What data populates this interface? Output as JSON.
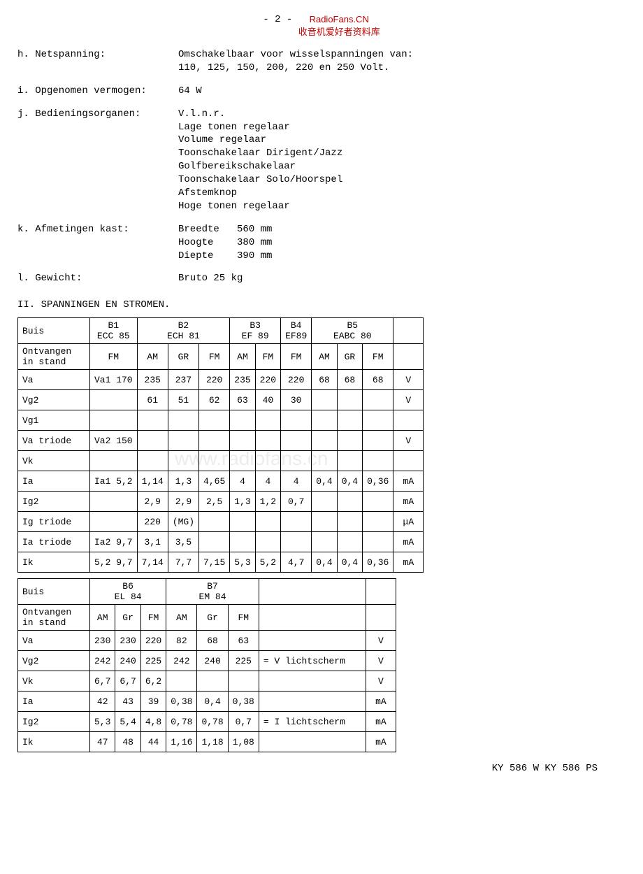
{
  "header": {
    "page_num": "- 2 -",
    "watermark_top": "RadioFans.CN",
    "watermark_sub": "收音机爱好者资料库"
  },
  "specs": [
    {
      "label": "h. Netspanning:",
      "value": "Omschakelbaar voor wisselspanningen van:\n110, 125, 150, 200, 220 en 250 Volt."
    },
    {
      "label": "i. Opgenomen vermogen:",
      "value": "64 W"
    },
    {
      "label": "j. Bedieningsorganen:",
      "value": "V.l.n.r.\nLage tonen regelaar\nVolume regelaar\nToonschakelaar Dirigent/Jazz\nGolfbereikschakelaar\nToonschakelaar Solo/Hoorspel\nAfstemknop\nHoge tonen regelaar"
    },
    {
      "label": "k. Afmetingen kast:",
      "value": "Breedte   560 mm\nHoogte    380 mm\nDiepte    390 mm"
    },
    {
      "label": "l. Gewicht:",
      "value": "Bruto 25 kg"
    }
  ],
  "section2_title": "II. SPANNINGEN EN STROMEN.",
  "table1": {
    "buis_label": "Buis",
    "tubes": [
      {
        "id": "B1",
        "type": "ECC 85",
        "span": 1
      },
      {
        "id": "B2",
        "type": "ECH  81",
        "span": 3
      },
      {
        "id": "B3",
        "type": "EF 89",
        "span": 2
      },
      {
        "id": "B4",
        "type": "EF89",
        "span": 1
      },
      {
        "id": "B5",
        "type": "EABC  80",
        "span": 3
      }
    ],
    "ontvangen_label": "Ontvangen\nin stand",
    "bands": [
      "FM",
      "AM",
      "GR",
      "FM",
      "AM",
      "FM",
      "FM",
      "AM",
      "GR",
      "FM"
    ],
    "rows": [
      {
        "lbl": "Va",
        "c": [
          "Va1 170",
          "235",
          "237",
          "220",
          "235",
          "220",
          "220",
          "68",
          "68",
          "68"
        ],
        "u": "V"
      },
      {
        "lbl": "Vg2",
        "c": [
          "",
          "61",
          "51",
          "62",
          "63",
          "40",
          "30",
          "",
          "",
          ""
        ],
        "u": "V"
      },
      {
        "lbl": "Vg1",
        "c": [
          "",
          "",
          "",
          "",
          "",
          "",
          "",
          "",
          "",
          ""
        ],
        "u": ""
      },
      {
        "lbl": "Va triode",
        "c": [
          "Va2 150",
          "",
          "",
          "",
          "",
          "",
          "",
          "",
          "",
          ""
        ],
        "u": "V"
      },
      {
        "lbl": "Vk",
        "c": [
          "",
          "",
          "",
          "",
          "",
          "",
          "",
          "",
          "",
          ""
        ],
        "u": ""
      },
      {
        "lbl": "Ia",
        "c": [
          "Ia1 5,2",
          "1,14",
          "1,3",
          "4,65",
          "4",
          "4",
          "4",
          "0,4",
          "0,4",
          "0,36"
        ],
        "u": "mA"
      },
      {
        "lbl": "Ig2",
        "c": [
          "",
          "2,9",
          "2,9",
          "2,5",
          "1,3",
          "1,2",
          "0,7",
          "",
          "",
          ""
        ],
        "u": "mA"
      },
      {
        "lbl": "Ig triode",
        "c": [
          "",
          "220",
          "(MG)",
          "",
          "",
          "",
          "",
          "",
          "",
          ""
        ],
        "u": "μA"
      },
      {
        "lbl": "Ia triode",
        "c": [
          "Ia2 9,7",
          "3,1",
          "3,5",
          "",
          "",
          "",
          "",
          "",
          "",
          ""
        ],
        "u": "mA"
      },
      {
        "lbl": "Ik",
        "c": [
          "5,2 9,7",
          "7,14",
          "7,7",
          "7,15",
          "5,3",
          "5,2",
          "4,7",
          "0,4",
          "0,4",
          "0,36"
        ],
        "u": "mA"
      }
    ]
  },
  "table2": {
    "buis_label": "Buis",
    "tubes": [
      {
        "id": "B6",
        "type": "EL  84",
        "span": 3
      },
      {
        "id": "B7",
        "type": "EM  84",
        "span": 3
      }
    ],
    "ontvangen_label": "Ontvangen\nin stand",
    "bands": [
      "AM",
      "Gr",
      "FM",
      "AM",
      "Gr",
      "FM"
    ],
    "rows": [
      {
        "lbl": "Va",
        "c": [
          "230",
          "230",
          "220",
          "82",
          "68",
          "63"
        ],
        "note": "",
        "u": "V"
      },
      {
        "lbl": "Vg2",
        "c": [
          "242",
          "240",
          "225",
          "242",
          "240",
          "225"
        ],
        "note": "= V lichtscherm",
        "u": "V"
      },
      {
        "lbl": "Vk",
        "c": [
          "6,7",
          "6,7",
          "6,2",
          "",
          "",
          ""
        ],
        "note": "",
        "u": "V"
      },
      {
        "lbl": "Ia",
        "c": [
          "42",
          "43",
          "39",
          "0,38",
          "0,4",
          "0,38"
        ],
        "note": "",
        "u": "mA"
      },
      {
        "lbl": "Ig2",
        "c": [
          "5,3",
          "5,4",
          "4,8",
          "0,78",
          "0,78",
          "0,7"
        ],
        "note": "= I lichtscherm",
        "u": "mA"
      },
      {
        "lbl": "Ik",
        "c": [
          "47",
          "48",
          "44",
          "1,16",
          "1,18",
          "1,08"
        ],
        "note": "",
        "u": "mA"
      }
    ]
  },
  "footer": "KY 586 W KY 586 PS",
  "bg_watermark": "www.radiofans.cn"
}
